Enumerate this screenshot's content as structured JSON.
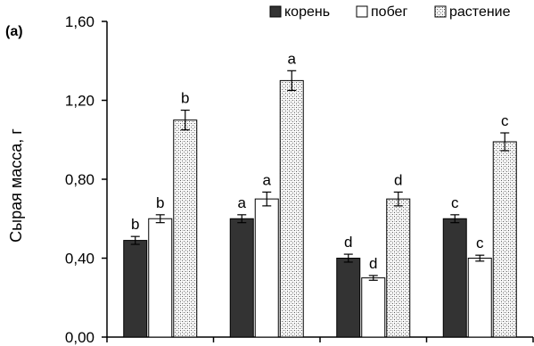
{
  "chart_data": {
    "type": "bar",
    "panel_label": "(a)",
    "ylabel": "Сырая масса, г",
    "ylim": [
      0,
      1.6
    ],
    "yticks": [
      "0,00",
      "0,40",
      "0,80",
      "1,20",
      "1,60"
    ],
    "ytick_values": [
      0,
      0.4,
      0.8,
      1.2,
      1.6
    ],
    "legend_position": "top-right",
    "groups": 4,
    "series": [
      {
        "name": "корень",
        "color": "#333333",
        "pattern": "solid",
        "values": [
          0.49,
          0.6,
          0.4,
          0.6
        ],
        "errors": [
          0.02,
          0.02,
          0.02,
          0.02
        ],
        "letters": [
          "b",
          "a",
          "d",
          "c"
        ]
      },
      {
        "name": "побег",
        "color": "#ffffff",
        "pattern": "empty",
        "values": [
          0.6,
          0.7,
          0.3,
          0.4
        ],
        "errors": [
          0.02,
          0.035,
          0.012,
          0.015
        ],
        "letters": [
          "b",
          "a",
          "d",
          "c"
        ]
      },
      {
        "name": "растение",
        "color": "#e0e0e0",
        "pattern": "dotted",
        "values": [
          1.1,
          1.3,
          0.7,
          0.99
        ],
        "errors": [
          0.05,
          0.05,
          0.035,
          0.045
        ],
        "letters": [
          "b",
          "a",
          "d",
          "c"
        ]
      }
    ]
  }
}
